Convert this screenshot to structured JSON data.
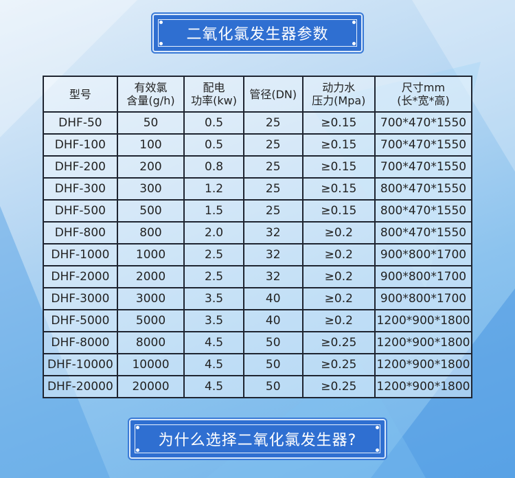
{
  "title": "二氧化氯发生器参数",
  "footer_button": "为什么选择二氧化氯发生器?",
  "table": {
    "headers": [
      [
        "型号"
      ],
      [
        "有效氯",
        "含量(g/h)"
      ],
      [
        "配电",
        "功率(kw)"
      ],
      [
        "管径(DN)"
      ],
      [
        "动力水",
        "压力(Mpa)"
      ],
      [
        "尺寸mm",
        "(长*宽*高)"
      ]
    ],
    "rows": [
      [
        "DHF-50",
        "50",
        "0.5",
        "25",
        "≥0.15",
        "700*470*1550"
      ],
      [
        "DHF-100",
        "100",
        "0.5",
        "25",
        "≥0.15",
        "700*470*1550"
      ],
      [
        "DHF-200",
        "200",
        "0.8",
        "25",
        "≥0.15",
        "700*470*1550"
      ],
      [
        "DHF-300",
        "300",
        "1.2",
        "25",
        "≥0.15",
        "800*470*1550"
      ],
      [
        "DHF-500",
        "500",
        "1.5",
        "25",
        "≥0.15",
        "800*470*1550"
      ],
      [
        "DHF-800",
        "800",
        "2.0",
        "32",
        "≥0.2",
        "800*470*1550"
      ],
      [
        "DHF-1000",
        "1000",
        "2.5",
        "32",
        "≥0.2",
        "900*800*1700"
      ],
      [
        "DHF-2000",
        "2000",
        "2.5",
        "32",
        "≥0.2",
        "900*800*1700"
      ],
      [
        "DHF-3000",
        "3000",
        "3.5",
        "40",
        "≥0.2",
        "900*800*1700"
      ],
      [
        "DHF-5000",
        "5000",
        "3.5",
        "40",
        "≥0.2",
        "1200*900*1800"
      ],
      [
        "DHF-8000",
        "8000",
        "4.5",
        "50",
        "≥0.25",
        "1200*900*1800"
      ],
      [
        "DHF-10000",
        "10000",
        "4.5",
        "50",
        "≥0.25",
        "1200*900*1800"
      ],
      [
        "DHF-20000",
        "20000",
        "4.5",
        "50",
        "≥0.25",
        "1200*900*1800"
      ]
    ]
  },
  "colors": {
    "banner": "#2f6fd1",
    "border": "#1e2430"
  }
}
